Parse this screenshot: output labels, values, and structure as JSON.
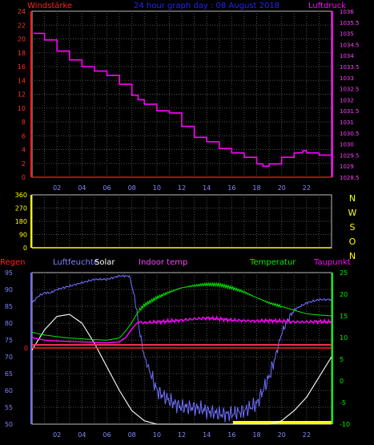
{
  "window": {
    "title": "24 hour graph day : 08 August 2018"
  },
  "colors": {
    "background": "#000000",
    "grid": "#505050",
    "pressure": "#ff00ff",
    "wind": "#ff2020",
    "direction": "#ffff00",
    "humidity": "#6f6fff",
    "solar": "#ffffff",
    "indoor": "#ff44ff",
    "temperature": "#00ee00",
    "dewpoint": "#ff00ff",
    "rain": "#ff2020",
    "title": "#2222ff"
  },
  "chart_data": [
    {
      "type": "line",
      "title": "24 hour graph day : 08 August 2018",
      "left_axis_label": "Windstärke",
      "right_axis_label": "Luftdruck",
      "x_ticks": [
        "02",
        "04",
        "06",
        "08",
        "10",
        "12",
        "14",
        "16",
        "18",
        "20",
        "22"
      ],
      "xlim": [
        0,
        24
      ],
      "ylim_left": [
        0,
        24
      ],
      "left_ticks": [
        "0",
        "2",
        "4",
        "6",
        "8",
        "10",
        "12",
        "14",
        "16",
        "18",
        "20",
        "22",
        "24"
      ],
      "ylim_right": [
        1028.5,
        1036
      ],
      "right_ticks": [
        "1028.5",
        "1029",
        "1029.5",
        "1030",
        "1030.5",
        "1031",
        "1031.5",
        "1032",
        "1032.5",
        "1033",
        "1033.5",
        "1034",
        "1034.5",
        "1035",
        "1035.5",
        "1036"
      ],
      "grid": true,
      "series": [
        {
          "name": "Luftdruck",
          "axis": "right",
          "x": [
            0.1,
            1,
            2,
            3,
            4,
            5,
            5.6,
            6,
            7,
            8,
            8.5,
            9,
            10,
            11,
            12,
            13,
            14,
            15,
            16,
            17,
            18,
            18.5,
            19,
            20,
            21,
            21.7,
            22,
            23,
            24
          ],
          "y": [
            1035.0,
            1034.7,
            1034.2,
            1033.8,
            1033.5,
            1033.3,
            1033.3,
            1033.1,
            1032.7,
            1032.2,
            1032.0,
            1031.8,
            1031.5,
            1031.4,
            1030.8,
            1030.3,
            1030.1,
            1029.8,
            1029.6,
            1029.4,
            1029.1,
            1029.0,
            1029.1,
            1029.4,
            1029.6,
            1029.7,
            1029.6,
            1029.5,
            1029.3
          ]
        },
        {
          "name": "Windstärke",
          "axis": "left",
          "x": [
            0,
            24
          ],
          "y": [
            0,
            0
          ]
        }
      ]
    },
    {
      "type": "scatter",
      "title": "",
      "x_ticks": [
        "02",
        "04",
        "06",
        "08",
        "10",
        "12",
        "14",
        "16",
        "18",
        "20",
        "22"
      ],
      "xlim": [
        0,
        24
      ],
      "ylim": [
        0,
        360
      ],
      "y_ticks": [
        "0",
        "90",
        "180",
        "270",
        "360"
      ],
      "direction_labels": [
        "N",
        "W",
        "S",
        "O",
        "N"
      ],
      "grid": true,
      "series": [
        {
          "name": "",
          "x": [
            0,
            24
          ],
          "y": [
            0,
            0
          ]
        }
      ]
    },
    {
      "type": "line",
      "title": "",
      "legend": [
        "Regen",
        "Luftfeuchte",
        "Solar",
        "Indoor temp",
        "Temperatur",
        "Taupunkt"
      ],
      "x_ticks": [
        "02",
        "04",
        "06",
        "08",
        "10",
        "12",
        "14",
        "16",
        "18",
        "20",
        "22"
      ],
      "xlim": [
        0,
        24
      ],
      "ylim_humidity": [
        50,
        95
      ],
      "humidity_ticks": [
        "50",
        "55",
        "60",
        "65",
        "70",
        "75",
        "80",
        "85",
        "90",
        "95"
      ],
      "rain_ticks": [
        "0"
      ],
      "ylim_temperature": [
        -10,
        25
      ],
      "temperature_ticks": [
        "-10",
        "-5",
        "0",
        "5",
        "10",
        "15",
        "20",
        "25"
      ],
      "grid": true,
      "series": [
        {
          "name": "Luftfeuchte",
          "axis": "humidity",
          "x": [
            0,
            0.5,
            1,
            1.5,
            2,
            3,
            4,
            5,
            6,
            7,
            7.8,
            8,
            8.3,
            8.6,
            9,
            9.5,
            10,
            11,
            12,
            13,
            14,
            15,
            16,
            17,
            18,
            18.5,
            19,
            19.5,
            20,
            20.5,
            21,
            22,
            23,
            24
          ],
          "y": [
            86,
            88,
            89,
            89,
            90,
            91,
            92,
            93,
            93,
            94,
            94,
            91,
            86,
            78,
            70,
            65,
            60,
            57,
            55,
            55,
            54,
            53,
            53,
            54,
            56,
            60,
            64,
            70,
            77,
            81,
            84,
            86,
            87,
            87
          ]
        },
        {
          "name": "Solar",
          "axis": "humidity",
          "x": [
            0,
            1,
            2,
            3,
            4,
            5,
            6,
            7,
            8,
            9,
            10,
            11,
            12,
            13,
            14,
            15,
            16,
            17,
            18,
            19,
            20,
            21,
            22,
            23,
            24
          ],
          "y": [
            72,
            78,
            82,
            82.6,
            80,
            74,
            67,
            60,
            54,
            51,
            50,
            50,
            50,
            50,
            50,
            50,
            50,
            50,
            50,
            50,
            51,
            54,
            58,
            64,
            70
          ]
        },
        {
          "name": "Indoor temp",
          "axis": "temperature",
          "x": [
            0,
            24
          ],
          "y": [
            8.3,
            8.3
          ]
        },
        {
          "name": "Temperatur",
          "axis": "temperature",
          "x": [
            0,
            1,
            2,
            3,
            4,
            5,
            6,
            7,
            7.5,
            8,
            8.5,
            9,
            10,
            11,
            12,
            13,
            14,
            15,
            16,
            17,
            18,
            19,
            20,
            21,
            22,
            23,
            24
          ],
          "y": [
            11.2,
            10.6,
            10.2,
            9.9,
            9.7,
            9.5,
            9.4,
            9.9,
            11.5,
            13.5,
            16.0,
            17.5,
            19.2,
            20.5,
            21.5,
            22.0,
            22.3,
            22.2,
            21.5,
            20.5,
            19.2,
            18.0,
            17.2,
            16.3,
            15.5,
            15.2,
            15.0
          ]
        },
        {
          "name": "Taupunkt",
          "axis": "temperature",
          "x": [
            0,
            1,
            2,
            3,
            4,
            5,
            6,
            7,
            7.5,
            8,
            8.5,
            9,
            10,
            11,
            12,
            13,
            14,
            15,
            16,
            17,
            18,
            19,
            20,
            21,
            22,
            23,
            24
          ],
          "y": [
            10.0,
            9.4,
            9.2,
            9.1,
            9.0,
            8.9,
            8.8,
            9.0,
            10.0,
            12.0,
            13.6,
            13.4,
            13.6,
            13.8,
            14.0,
            14.3,
            14.5,
            14.3,
            14.0,
            13.9,
            13.8,
            13.9,
            13.8,
            13.6,
            13.6,
            13.7,
            13.6
          ]
        },
        {
          "name": "Regen",
          "axis": "rain",
          "x": [
            0,
            24
          ],
          "y": [
            0,
            0
          ]
        }
      ]
    }
  ]
}
